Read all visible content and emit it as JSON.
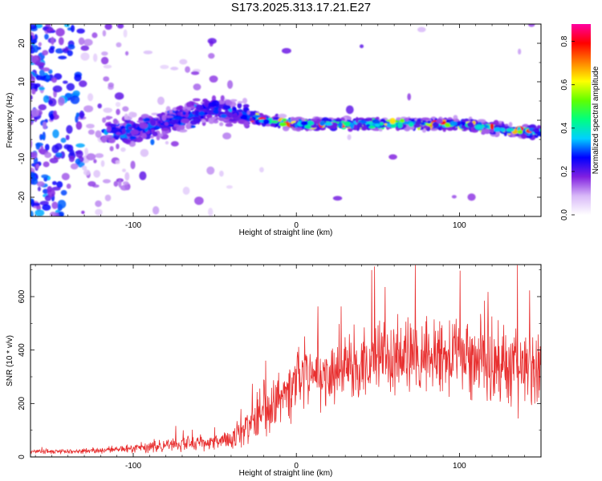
{
  "figure_title": "S173.2025.313.17.21.E27",
  "chart_data": [
    {
      "type": "heatmap",
      "title": "S173.2025.313.17.21.E27",
      "xlabel": "Height of straight line (km)",
      "ylabel": "Frequency (Hz)",
      "xlim": [
        -163,
        150
      ],
      "ylim": [
        -25,
        25
      ],
      "xticks": [
        -100,
        0,
        100
      ],
      "xtick_labels": [
        "-100",
        "0",
        "100"
      ],
      "yticks": [
        -20,
        -10,
        0,
        10,
        20
      ],
      "ytick_labels": [
        "-20",
        "-10",
        "0",
        "10",
        "20"
      ],
      "colorbar": {
        "label": "Normalized spectral amplitude",
        "range": [
          0,
          0.88
        ],
        "ticks": [
          0.0,
          0.2,
          0.4,
          0.6,
          0.8
        ],
        "tick_labels": [
          "0.0",
          "0.2",
          "0.4",
          "0.6",
          "0.8"
        ],
        "colormap": [
          "#ffffff",
          "#d8b8f8",
          "#8020e0",
          "#0000ff",
          "#00d0ff",
          "#00ff80",
          "#60ff00",
          "#ffff00",
          "#ff8000",
          "#ff0000",
          "#ff00a0"
        ]
      },
      "ridge_center_hz": [
        {
          "x": -110,
          "f": -3
        },
        {
          "x": -90,
          "f": -2
        },
        {
          "x": -70,
          "f": 1
        },
        {
          "x": -50,
          "f": 3
        },
        {
          "x": -35,
          "f": 2
        },
        {
          "x": -20,
          "f": 0
        },
        {
          "x": 0,
          "f": -1
        },
        {
          "x": 25,
          "f": -1
        },
        {
          "x": 50,
          "f": -1
        },
        {
          "x": 75,
          "f": -1
        },
        {
          "x": 100,
          "f": -1
        },
        {
          "x": 120,
          "f": -2
        },
        {
          "x": 140,
          "f": -3
        },
        {
          "x": 150,
          "f": -3
        }
      ]
    },
    {
      "type": "line",
      "xlabel": "Height of straight line (km)",
      "ylabel": "SNR (10 * v/v)",
      "xlim": [
        -163,
        150
      ],
      "ylim": [
        0,
        720
      ],
      "xticks": [
        -100,
        0,
        100
      ],
      "xtick_labels": [
        "-100",
        "0",
        "100"
      ],
      "yticks": [
        0,
        200,
        400,
        600
      ],
      "ytick_labels": [
        "0",
        "200",
        "400",
        "600"
      ],
      "series": [
        {
          "name": "SNR",
          "color": "#e83030",
          "envelope": [
            {
              "x": -163,
              "mean": 20,
              "spread": 12
            },
            {
              "x": -120,
              "mean": 22,
              "spread": 15
            },
            {
              "x": -100,
              "mean": 35,
              "spread": 30
            },
            {
              "x": -80,
              "mean": 45,
              "spread": 40
            },
            {
              "x": -60,
              "mean": 50,
              "spread": 45
            },
            {
              "x": -40,
              "mean": 65,
              "spread": 55
            },
            {
              "x": -30,
              "mean": 110,
              "spread": 90
            },
            {
              "x": -20,
              "mean": 180,
              "spread": 150
            },
            {
              "x": -10,
              "mean": 240,
              "spread": 180
            },
            {
              "x": 0,
              "mean": 280,
              "spread": 190
            },
            {
              "x": 20,
              "mean": 310,
              "spread": 200
            },
            {
              "x": 40,
              "mean": 360,
              "spread": 230
            },
            {
              "x": 60,
              "mean": 380,
              "spread": 240
            },
            {
              "x": 80,
              "mean": 380,
              "spread": 230
            },
            {
              "x": 100,
              "mean": 370,
              "spread": 230
            },
            {
              "x": 120,
              "mean": 360,
              "spread": 240
            },
            {
              "x": 135,
              "mean": 340,
              "spread": 260
            },
            {
              "x": 150,
              "mean": 330,
              "spread": 250
            }
          ]
        }
      ]
    }
  ]
}
